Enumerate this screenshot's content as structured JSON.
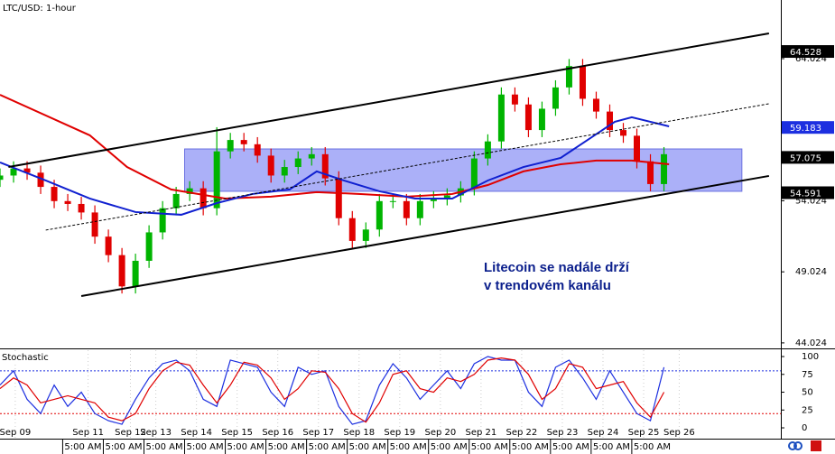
{
  "chart_data": [
    {
      "type": "candlestick",
      "title": "LTC/USD: 1-hour",
      "x": [
        0,
        8,
        16,
        24,
        32,
        40,
        48,
        56,
        64,
        72,
        80,
        88,
        96,
        104,
        112,
        120,
        128,
        136,
        144,
        152,
        160,
        168,
        176,
        184,
        192,
        200,
        208,
        216,
        224,
        232,
        240,
        248,
        256,
        264,
        272,
        280,
        288,
        296,
        304,
        312,
        320,
        328,
        336,
        344,
        352,
        360,
        368,
        376,
        384,
        392
      ],
      "open": [
        55.5,
        55.8,
        56.3,
        56.0,
        55.0,
        54.0,
        53.8,
        53.2,
        51.5,
        50.2,
        48.0,
        49.8,
        51.8,
        53.5,
        54.5,
        54.9,
        53.5,
        57.5,
        58.3,
        58.0,
        57.2,
        55.8,
        56.4,
        57.0,
        57.3,
        55.6,
        52.8,
        51.2,
        52.0,
        54.0,
        54.0,
        52.8,
        54.0,
        54.2,
        54.4,
        54.9,
        57.0,
        58.2,
        61.5,
        60.8,
        59.0,
        60.5,
        62.0,
        63.5,
        61.2,
        60.3,
        59.0,
        58.6,
        56.8,
        55.2
      ],
      "high": [
        56.3,
        56.8,
        56.8,
        56.5,
        55.5,
        54.5,
        54.3,
        53.7,
        52.0,
        50.7,
        50.3,
        52.3,
        54.0,
        55.0,
        55.4,
        55.4,
        59.2,
        58.8,
        58.8,
        58.5,
        57.7,
        56.9,
        57.5,
        57.8,
        57.8,
        56.1,
        53.3,
        52.5,
        54.5,
        54.5,
        54.5,
        54.5,
        54.7,
        54.9,
        55.4,
        57.5,
        58.7,
        62.0,
        62.0,
        61.3,
        61.0,
        62.5,
        64.0,
        64.0,
        61.7,
        60.8,
        59.5,
        59.1,
        57.3,
        57.8
      ],
      "low": [
        55.0,
        55.3,
        55.5,
        54.5,
        53.5,
        53.3,
        52.7,
        51.0,
        49.7,
        47.5,
        47.5,
        49.3,
        51.3,
        53.0,
        54.0,
        53.0,
        53.0,
        57.0,
        57.5,
        56.7,
        55.3,
        55.3,
        55.9,
        56.5,
        55.1,
        52.3,
        50.7,
        50.7,
        51.5,
        53.5,
        52.3,
        52.3,
        53.5,
        53.7,
        53.9,
        54.4,
        56.5,
        57.7,
        60.3,
        58.5,
        58.5,
        60.0,
        61.5,
        60.7,
        59.8,
        58.5,
        58.1,
        56.3,
        54.7,
        54.7
      ],
      "close": [
        55.8,
        56.3,
        56.0,
        55.0,
        54.0,
        53.8,
        53.2,
        51.5,
        50.2,
        48.0,
        49.8,
        51.8,
        53.5,
        54.5,
        54.9,
        53.5,
        57.5,
        58.3,
        58.0,
        57.2,
        55.8,
        56.4,
        57.0,
        57.3,
        55.6,
        52.8,
        51.2,
        52.0,
        54.0,
        54.0,
        52.8,
        54.0,
        54.2,
        54.4,
        54.9,
        57.0,
        58.2,
        61.5,
        60.8,
        59.0,
        60.5,
        62.0,
        63.5,
        61.2,
        60.3,
        59.0,
        58.6,
        56.8,
        55.2,
        57.3
      ],
      "up_color": "#00b400",
      "down_color": "#e00000",
      "xlim": [
        0,
        461
      ],
      "ylim": [
        43.7,
        68.15
      ],
      "yticks": [
        44.024,
        49.024,
        54.024,
        64.024
      ],
      "overlays": [
        {
          "color": "#e00000",
          "x": [
            0,
            53,
            75,
            101,
            133,
            160,
            187,
            213,
            240,
            267,
            288,
            309,
            331,
            352,
            373,
            395
          ],
          "values": [
            61.48,
            58.63,
            56.4,
            54.82,
            54.18,
            54.31,
            54.63,
            54.5,
            54.31,
            54.5,
            55.13,
            56.09,
            56.59,
            56.85,
            56.85,
            56.59
          ]
        },
        {
          "color": "#1020d0",
          "x": [
            0,
            27,
            53,
            80,
            107,
            128,
            149,
            171,
            187,
            203,
            224,
            245,
            267,
            288,
            309,
            331,
            347,
            363,
            373,
            384,
            395
          ],
          "values": [
            56.72,
            55.45,
            54.18,
            53.23,
            53.04,
            53.86,
            54.5,
            54.82,
            56.09,
            55.45,
            54.69,
            54.18,
            54.18,
            55.45,
            56.4,
            57.04,
            58.31,
            59.58,
            59.9,
            59.58,
            59.26
          ]
        }
      ],
      "trendlines": [
        {
          "x": [
            5,
            454
          ],
          "values": [
            56.4,
            65.8
          ],
          "color": "#000000",
          "dashed": false
        },
        {
          "x": [
            48,
            454
          ],
          "values": [
            47.32,
            55.77
          ],
          "color": "#000000",
          "dashed": false
        },
        {
          "x": [
            27,
            454
          ],
          "values": [
            51.96,
            60.85
          ],
          "color": "#000000",
          "dashed": true
        }
      ],
      "zone": {
        "x": [
          109,
          438
        ],
        "y": [
          54.69,
          57.67
        ],
        "color": "#8f95f5"
      },
      "price_tags": [
        {
          "value": 64.528,
          "color": "#000000"
        },
        {
          "value": 59.183,
          "color": "#1c2fe0"
        },
        {
          "value": 57.075,
          "color": "#000000"
        },
        {
          "value": 54.591,
          "color": "#000000"
        }
      ],
      "annotation": [
        "Litecoin se nadále drží",
        "v trendovém kanálu"
      ]
    },
    {
      "type": "line",
      "title": "Stochastic",
      "x": [
        0,
        8,
        16,
        24,
        32,
        40,
        48,
        56,
        64,
        72,
        80,
        88,
        96,
        104,
        112,
        120,
        128,
        136,
        144,
        152,
        160,
        168,
        176,
        184,
        192,
        200,
        208,
        216,
        224,
        232,
        240,
        248,
        256,
        264,
        272,
        280,
        288,
        296,
        304,
        312,
        320,
        328,
        336,
        344,
        352,
        360,
        368,
        376,
        384,
        392
      ],
      "series": [
        {
          "color": "#1c2fe0",
          "values": [
            60,
            80,
            40,
            20,
            60,
            30,
            50,
            20,
            10,
            5,
            40,
            70,
            90,
            95,
            80,
            40,
            30,
            95,
            90,
            85,
            50,
            30,
            85,
            75,
            80,
            30,
            5,
            10,
            60,
            90,
            70,
            40,
            60,
            80,
            55,
            90,
            100,
            95,
            95,
            50,
            30,
            85,
            95,
            70,
            40,
            80,
            50,
            20,
            10,
            85
          ]
        },
        {
          "color": "#e00000",
          "values": [
            55,
            70,
            60,
            35,
            40,
            45,
            40,
            35,
            15,
            10,
            20,
            55,
            80,
            92,
            88,
            60,
            35,
            60,
            92,
            88,
            70,
            40,
            55,
            80,
            78,
            55,
            20,
            8,
            35,
            75,
            80,
            55,
            50,
            70,
            65,
            75,
            95,
            98,
            95,
            75,
            40,
            55,
            90,
            85,
            55,
            60,
            65,
            35,
            15,
            50
          ]
        }
      ],
      "xlim": [
        0,
        461
      ],
      "ylim": [
        -13.9,
        108.9
      ],
      "yticks": [
        0,
        25,
        50,
        75,
        100
      ],
      "levels": [
        20,
        80
      ],
      "xticks": [
        {
          "value": 9,
          "label": "Sep 09"
        },
        {
          "value": 52,
          "label": "Sep 11"
        },
        {
          "value": 77,
          "label": "Sep 12"
        },
        {
          "value": 92,
          "label": "Sep 13"
        },
        {
          "value": 116,
          "label": "Sep 14"
        },
        {
          "value": 140,
          "label": "Sep 15"
        },
        {
          "value": 164,
          "label": "Sep 16"
        },
        {
          "value": 188,
          "label": "Sep 17"
        },
        {
          "value": 212,
          "label": "Sep 18"
        },
        {
          "value": 236,
          "label": "Sep 19"
        },
        {
          "value": 260,
          "label": "Sep 20"
        },
        {
          "value": 284,
          "label": "Sep 21"
        },
        {
          "value": 308,
          "label": "Sep 22"
        },
        {
          "value": 332,
          "label": "Sep 23"
        },
        {
          "value": 356,
          "label": "Sep 24"
        },
        {
          "value": 380,
          "label": "Sep 25"
        },
        {
          "value": 401,
          "label": "Sep 26"
        }
      ],
      "minor_xticks": [
        {
          "value": 37,
          "label": "5:00 AM"
        },
        {
          "value": 61,
          "label": "5:00 AM"
        },
        {
          "value": 85,
          "label": "5:00 AM"
        },
        {
          "value": 109,
          "label": "5:00 AM"
        },
        {
          "value": 133,
          "label": "5:00 AM"
        },
        {
          "value": 157,
          "label": "5:00 AM"
        },
        {
          "value": 181,
          "label": "5:00 AM"
        },
        {
          "value": 205,
          "label": "5:00 AM"
        },
        {
          "value": 229,
          "label": "5:00 AM"
        },
        {
          "value": 253,
          "label": "5:00 AM"
        },
        {
          "value": 277,
          "label": "5:00 AM"
        },
        {
          "value": 301,
          "label": "5:00 AM"
        },
        {
          "value": 325,
          "label": "5:00 AM"
        },
        {
          "value": 349,
          "label": "5:00 AM"
        },
        {
          "value": 373,
          "label": "5:00 AM"
        }
      ]
    }
  ]
}
